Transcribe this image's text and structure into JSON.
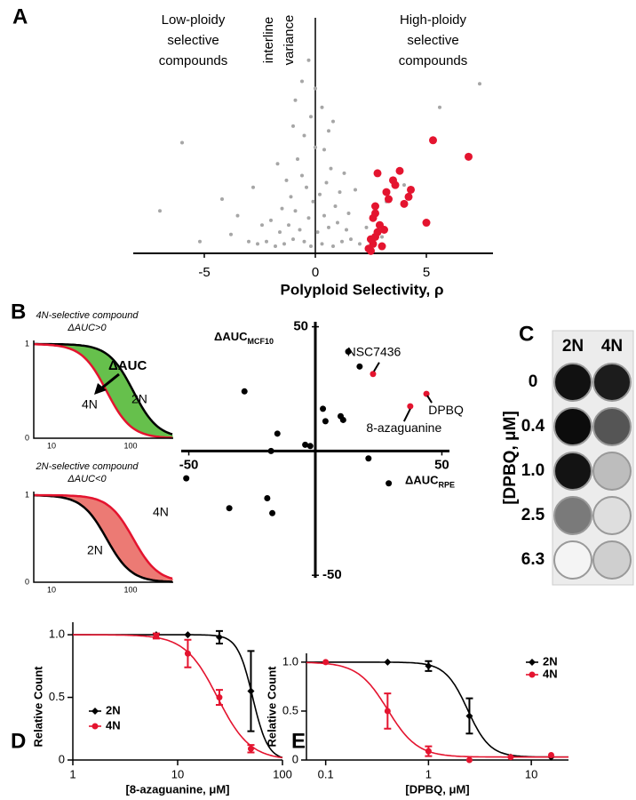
{
  "chart_data": [
    {
      "panel": "A",
      "type": "scatter",
      "xlabel": "Polyploid Selectivity, ρ",
      "ylabel": [
        "interline",
        "variance"
      ],
      "annotations": [
        [
          "Low-ploidy",
          "selective",
          "compounds"
        ],
        [
          "High-ploidy",
          "selective",
          "compounds"
        ]
      ],
      "xlim": [
        -8.2,
        8
      ],
      "ylim": [
        0,
        10
      ],
      "xticks": [
        -5,
        0,
        5
      ],
      "series": [
        {
          "color": "#a6a6a6",
          "x": [
            -0.2,
            0.3,
            -0.5,
            0.8,
            -1.0,
            1.2,
            -1.4,
            1.6,
            -1.8,
            2.0,
            -2.2,
            0.1,
            -0.7,
            0.6,
            -1.2,
            1.0,
            -0.3,
            0.4,
            -1.6,
            1.4,
            -2.6,
            2.4,
            -3.0,
            -0.9,
            0.9,
            -0.1,
            0.2,
            -0.4,
            0.5,
            -0.6,
            0.7,
            -1.1,
            1.1,
            -1.5,
            1.5,
            -2.0,
            -0.8,
            0.0,
            -0.5,
            0.6,
            -1.3,
            1.3,
            -0.2,
            0.3,
            -0.9,
            -3.5,
            -4.2,
            -6.0,
            -7.0,
            -2.8,
            3.2,
            4.0,
            1.8,
            -1.7,
            0.0,
            -0.6,
            0.4,
            -0.3,
            0.8,
            -1.0,
            2.3,
            -2.4,
            5.6,
            7.4,
            3.0,
            -3.8,
            -5.2
          ],
          "values": [
            0.3,
            0.4,
            0.5,
            0.3,
            0.6,
            0.5,
            0.4,
            0.6,
            0.3,
            0.4,
            0.5,
            0.9,
            1.0,
            1.1,
            1.2,
            1.3,
            1.5,
            1.6,
            0.9,
            1.0,
            0.4,
            0.6,
            0.5,
            1.8,
            2.0,
            2.2,
            2.5,
            2.8,
            3.0,
            3.3,
            3.6,
            2.4,
            2.6,
            1.9,
            1.7,
            1.4,
            4.0,
            4.5,
            5.0,
            5.2,
            3.1,
            3.4,
            5.8,
            6.2,
            6.5,
            1.6,
            2.3,
            4.7,
            1.8,
            2.8,
            2.2,
            2.9,
            2.7,
            3.8,
            7.0,
            7.3,
            4.4,
            8.2,
            5.6,
            5.4,
            1.1,
            1.2,
            6.2,
            7.2,
            0.7,
            0.8,
            0.5
          ]
        },
        {
          "color": "#e4142f",
          "x": [
            2.5,
            2.6,
            2.7,
            2.8,
            2.9,
            3.0,
            2.6,
            2.7,
            3.2,
            3.5,
            3.8,
            4.3,
            3.3,
            2.8,
            4.0,
            5.0,
            5.3,
            6.9,
            3.6,
            2.5,
            3.1,
            2.7,
            2.4,
            4.2
          ],
          "values": [
            0.1,
            0.4,
            0.7,
            0.9,
            1.2,
            0.3,
            1.5,
            2.0,
            2.6,
            3.1,
            3.5,
            2.7,
            2.3,
            3.4,
            2.1,
            1.3,
            4.8,
            4.1,
            2.9,
            0.6,
            1.0,
            1.7,
            0.2,
            2.4
          ]
        }
      ]
    },
    {
      "panel": "B",
      "type": "scatter",
      "xlabel": "ΔAUC",
      "xlabel_sub": "RPE",
      "ylabel": "ΔAUC",
      "ylabel_sub": "MCF10",
      "xlim": [
        -53,
        53
      ],
      "ylim": [
        -51,
        52
      ],
      "xticks": [
        -50,
        50
      ],
      "yticks": [
        50,
        -50
      ],
      "series": [
        {
          "color": "#000000",
          "x": [
            13,
            17.5,
            -28,
            3,
            4,
            -15,
            -4,
            -2,
            10,
            11,
            -17.5,
            -51,
            21,
            29,
            -19,
            -34,
            -17
          ],
          "values": [
            40,
            34,
            24,
            17,
            12,
            7,
            2.5,
            2,
            14,
            12.5,
            0,
            -11,
            -3,
            -13,
            -19,
            -23,
            -25
          ]
        },
        {
          "color": "#e4142f",
          "x": [
            22.8,
            43.9,
            37.5
          ],
          "values": [
            31,
            23,
            18
          ],
          "labels": [
            "NSC7436",
            "DPBQ",
            "8-azaguanine"
          ]
        }
      ]
    },
    {
      "panel": "D",
      "type": "line",
      "xscale": "log",
      "xlabel": "[8-azaguanine, μM]",
      "ylabel": "Relative Count",
      "xlim": [
        1,
        100
      ],
      "ylim": [
        0,
        1.1
      ],
      "xticks": [
        1,
        10,
        100
      ],
      "yticks": [
        0,
        0.5,
        {
          "value": 1,
          "label": "1.0"
        }
      ],
      "legend": "lower left",
      "series": [
        {
          "name": "2N",
          "color": "#000000",
          "marker": "diamond",
          "x": [
            6.25,
            12.5,
            25,
            50
          ],
          "values": [
            1,
            1,
            0.98,
            0.55
          ],
          "errors": [
            null,
            null,
            0.05,
            0.32
          ],
          "fit": {
            "top": 1,
            "bottom": 0,
            "ic50": 52,
            "hill": 6
          }
        },
        {
          "name": "4N",
          "color": "#e4142f",
          "marker": "circle",
          "x": [
            6.25,
            12.5,
            25,
            50
          ],
          "values": [
            0.99,
            0.85,
            0.5,
            0.09
          ],
          "errors": [
            0.02,
            0.11,
            0.06,
            0.03
          ],
          "fit": {
            "top": 1,
            "bottom": 0,
            "ic50": 24,
            "hill": 2.8
          }
        }
      ]
    },
    {
      "panel": "E",
      "type": "line",
      "xscale": "log",
      "xlabel": "[DPBQ, μM]",
      "ylabel": "Relative Count",
      "xlim": [
        0.065,
        23
      ],
      "ylim": [
        0,
        1.09
      ],
      "xticks": [
        0.1,
        1,
        10
      ],
      "yticks": [
        0,
        0.5,
        {
          "value": 1,
          "label": "1.0"
        }
      ],
      "legend": "upper right",
      "series": [
        {
          "name": "2N",
          "color": "#000000",
          "marker": "diamond",
          "x": [
            0.4,
            1,
            2.5,
            6.3,
            15.6
          ],
          "values": [
            1,
            0.96,
            0.45,
            0.03,
            0.03
          ],
          "errors": [
            null,
            0.05,
            0.18,
            null,
            null
          ],
          "fit": {
            "top": 1,
            "bottom": 0.03,
            "ic50": 2.4,
            "hill": 4
          }
        },
        {
          "name": "4N",
          "color": "#e4142f",
          "marker": "circle",
          "x": [
            0.1,
            0.4,
            1,
            2.5,
            6.3,
            15.6
          ],
          "values": [
            1,
            0.5,
            0.09,
            0,
            0.03,
            0.05
          ],
          "errors": [
            null,
            0.18,
            0.05,
            null,
            null,
            null
          ],
          "fit": {
            "top": 1,
            "bottom": 0.03,
            "ic50": 0.4,
            "hill": 3
          }
        }
      ]
    }
  ],
  "schematic": {
    "top": {
      "title": "4N-selective compound",
      "subtitle": "ΔAUC>0",
      "arrow_label": "ΔAUC",
      "curve_labels": [
        "2N",
        "4N"
      ]
    },
    "bottom": {
      "title": "2N-selective compound",
      "subtitle": "ΔAUC<0",
      "curve_labels": [
        "2N",
        "4N"
      ]
    },
    "yticks": [
      "1",
      "0"
    ],
    "xticks": [
      "10",
      "100"
    ]
  },
  "plate": {
    "panel": "C",
    "columns": [
      "2N",
      "4N"
    ],
    "rows": [
      "0",
      "0.4",
      "1.0",
      "2.5",
      "6.3"
    ],
    "ylabel": "[DPBQ, μM]"
  }
}
